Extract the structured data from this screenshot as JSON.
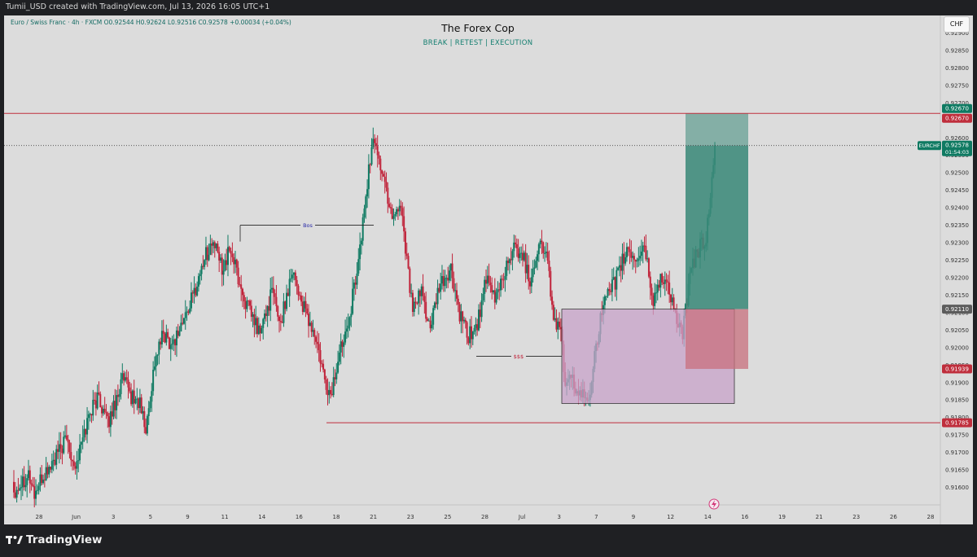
{
  "header": {
    "text": "Tumii_USD created with TradingView.com, Jul 13, 2026 16:05 UTC+1"
  },
  "legend": {
    "text": "Euro / Swiss Franc · 4h · FXCM  O0.92544  H0.92624  L0.92516  C0.92578  +0.00034 (+0.04%)"
  },
  "chart_title": "The Forex Cop",
  "chart_subtitle": "BREAK  |  RETEST  |  EXECUTION",
  "currency_button": "CHF",
  "footer": {
    "logo_text": "TradingView"
  },
  "colors": {
    "up": "#0f7a62",
    "down": "#c0233a",
    "background": "#dcdcdc",
    "take_profit_zone": "#3c8a7a",
    "stop_zone": "#c8707e",
    "range_box": "#c8a3c9",
    "level_line": "#bf2e3c"
  },
  "chart_data": {
    "type": "candlestick",
    "symbol": "EURCHF",
    "timeframe": "4h",
    "ylim": [
      0.9155,
      0.9295
    ],
    "y_ticks": [
      "0.92900",
      "0.92850",
      "0.92800",
      "0.92750",
      "0.92700",
      "0.92650",
      "0.92600",
      "0.92550",
      "0.92500",
      "0.92450",
      "0.92400",
      "0.92350",
      "0.92300",
      "0.92250",
      "0.92200",
      "0.92150",
      "0.92100",
      "0.92050",
      "0.92000",
      "0.91950",
      "0.91900",
      "0.91850",
      "0.91800",
      "0.91750",
      "0.91700",
      "0.91650",
      "0.91600"
    ],
    "x_ticks": [
      "28",
      "Jun",
      "3",
      "5",
      "9",
      "11",
      "14",
      "16",
      "18",
      "21",
      "23",
      "25",
      "28",
      "Jul",
      "3",
      "7",
      "9",
      "12",
      "14",
      "16",
      "19",
      "21",
      "23",
      "26",
      "28"
    ],
    "price_labels": [
      {
        "text": "0.92670",
        "value": 0.9267,
        "kind": "tp"
      },
      {
        "text": "0.92670",
        "value": 0.9267,
        "kind": "line"
      },
      {
        "text": "0.92110",
        "value": 0.9211,
        "kind": "neutral"
      },
      {
        "text": "0.91939",
        "value": 0.91939,
        "kind": "line"
      },
      {
        "text": "0.91785",
        "value": 0.91785,
        "kind": "line"
      }
    ],
    "current_price": {
      "symbol": "EURCHF",
      "value": 0.92578,
      "text": "0.92578",
      "countdown": "01:54:03"
    },
    "levels": [
      {
        "name": "resistance",
        "value": 0.9267
      },
      {
        "name": "support",
        "value": 0.91785
      }
    ],
    "annotations": [
      {
        "text": "Bos",
        "value": 0.9235
      },
      {
        "text": "$$$",
        "value": 0.91975
      }
    ],
    "trade": {
      "entry": 0.9211,
      "target": 0.9267,
      "stop": 0.91939
    },
    "range_box": {
      "top": 0.9211,
      "bottom": 0.9184
    },
    "segments": [
      [
        0,
        0.9159
      ],
      [
        10,
        0.9164
      ],
      [
        14,
        0.9158
      ],
      [
        20,
        0.9163
      ],
      [
        28,
        0.9168
      ],
      [
        36,
        0.9174
      ],
      [
        42,
        0.9166
      ],
      [
        52,
        0.9182
      ],
      [
        58,
        0.9186
      ],
      [
        64,
        0.9178
      ],
      [
        74,
        0.9191
      ],
      [
        80,
        0.9186
      ],
      [
        86,
        0.9184
      ],
      [
        90,
        0.9176
      ],
      [
        96,
        0.9196
      ],
      [
        102,
        0.9204
      ],
      [
        108,
        0.9201
      ],
      [
        116,
        0.9208
      ],
      [
        124,
        0.9217
      ],
      [
        130,
        0.9226
      ],
      [
        136,
        0.923
      ],
      [
        142,
        0.9223
      ],
      [
        148,
        0.9228
      ],
      [
        156,
        0.9215
      ],
      [
        162,
        0.9209
      ],
      [
        168,
        0.9204
      ],
      [
        176,
        0.9216
      ],
      [
        182,
        0.9207
      ],
      [
        190,
        0.9223
      ],
      [
        196,
        0.9213
      ],
      [
        206,
        0.9202
      ],
      [
        212,
        0.919
      ],
      [
        216,
        0.9186
      ],
      [
        224,
        0.9202
      ],
      [
        230,
        0.9212
      ],
      [
        236,
        0.9228
      ],
      [
        242,
        0.9251
      ],
      [
        246,
        0.926
      ],
      [
        252,
        0.9248
      ],
      [
        258,
        0.9238
      ],
      [
        264,
        0.9241
      ],
      [
        272,
        0.921
      ],
      [
        278,
        0.9216
      ],
      [
        284,
        0.9205
      ],
      [
        290,
        0.9217
      ],
      [
        298,
        0.9222
      ],
      [
        304,
        0.9209
      ],
      [
        310,
        0.9203
      ],
      [
        316,
        0.9207
      ],
      [
        322,
        0.9219
      ],
      [
        328,
        0.9214
      ],
      [
        334,
        0.9221
      ],
      [
        340,
        0.9228
      ],
      [
        346,
        0.9228
      ],
      [
        352,
        0.9219
      ],
      [
        358,
        0.923
      ],
      [
        364,
        0.9226
      ],
      [
        368,
        0.9206
      ],
      [
        372,
        0.9208
      ],
      [
        376,
        0.919
      ],
      [
        382,
        0.919
      ],
      [
        386,
        0.9186
      ],
      [
        392,
        0.9185
      ],
      [
        396,
        0.9199
      ],
      [
        402,
        0.9212
      ],
      [
        406,
        0.9215
      ],
      [
        412,
        0.9221
      ],
      [
        418,
        0.9228
      ],
      [
        424,
        0.9225
      ],
      [
        430,
        0.9229
      ],
      [
        436,
        0.9213
      ],
      [
        442,
        0.9221
      ],
      [
        448,
        0.9215
      ],
      [
        452,
        0.9208
      ],
      [
        456,
        0.9203
      ],
      [
        460,
        0.9218
      ],
      [
        464,
        0.9225
      ],
      [
        468,
        0.9229
      ],
      [
        472,
        0.9231
      ],
      [
        478,
        0.9258
      ]
    ]
  }
}
